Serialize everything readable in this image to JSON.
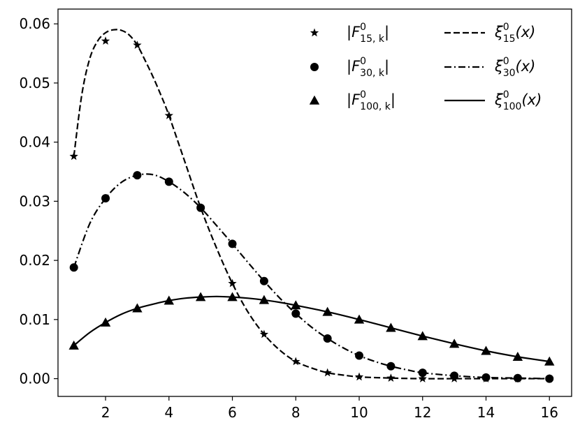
{
  "chart_data": {
    "type": "line",
    "title": "",
    "xlabel": "",
    "ylabel": "",
    "xlim": [
      0.5,
      16.7
    ],
    "ylim": [
      -0.003,
      0.0625
    ],
    "x_ticks": [
      2,
      4,
      6,
      8,
      10,
      12,
      14,
      16
    ],
    "x_tick_labels": [
      "2",
      "4",
      "6",
      "8",
      "10",
      "12",
      "14",
      "16"
    ],
    "y_ticks": [
      0.0,
      0.01,
      0.02,
      0.03,
      0.04,
      0.05,
      0.06
    ],
    "y_tick_labels": [
      "0.00",
      "0.01",
      "0.02",
      "0.03",
      "0.04",
      "0.05",
      "0.06"
    ],
    "grid": false,
    "legend_position": "top-right",
    "series": [
      {
        "name": "|F^0_{15,k}|",
        "legend": {
          "base": "|F",
          "sup": "0",
          "sub": "15, k",
          "tail": "|"
        },
        "kind": "markers",
        "marker": "star",
        "x": [
          1,
          2,
          3,
          4,
          5,
          6,
          7,
          8,
          9,
          10,
          11,
          12,
          13,
          14,
          15,
          16
        ],
        "y": [
          0.0376,
          0.0571,
          0.0564,
          0.0445,
          0.0289,
          0.0161,
          0.0075,
          0.0029,
          0.001,
          0.0003,
          0.0001,
          0.0,
          0.0,
          0.0,
          0.0,
          0.0
        ]
      },
      {
        "name": "|F^0_{30,k}|",
        "legend": {
          "base": "|F",
          "sup": "0",
          "sub": "30, k",
          "tail": "|"
        },
        "kind": "markers",
        "marker": "circle",
        "x": [
          1,
          2,
          3,
          4,
          5,
          6,
          7,
          8,
          9,
          10,
          11,
          12,
          13,
          14,
          15,
          16
        ],
        "y": [
          0.0188,
          0.0305,
          0.0344,
          0.0333,
          0.0289,
          0.0228,
          0.0165,
          0.011,
          0.0068,
          0.0039,
          0.0021,
          0.001,
          0.0005,
          0.0002,
          0.0001,
          0.0
        ]
      },
      {
        "name": "|F^0_{100,k}|",
        "legend": {
          "base": "|F",
          "sup": "0",
          "sub": "100, k",
          "tail": "|"
        },
        "kind": "markers",
        "marker": "triangle",
        "x": [
          1,
          2,
          3,
          4,
          5,
          6,
          7,
          8,
          9,
          10,
          11,
          12,
          13,
          14,
          15,
          16
        ],
        "y": [
          0.0056,
          0.0095,
          0.0119,
          0.0132,
          0.0138,
          0.0138,
          0.0133,
          0.0124,
          0.0113,
          0.01,
          0.0086,
          0.0072,
          0.0059,
          0.0047,
          0.0037,
          0.0029
        ]
      },
      {
        "name": "ξ^0_{15}(x)",
        "legend": {
          "base": "ξ",
          "sup": "0",
          "sub": "15",
          "tail": "(x)"
        },
        "kind": "line",
        "dash": "dashed",
        "x": [
          1.0,
          1.25,
          1.5,
          1.75,
          2.0,
          2.25,
          2.5,
          2.75,
          3.0,
          3.25,
          3.5,
          3.75,
          4.0,
          4.5,
          5.0,
          5.5,
          6.0,
          6.5,
          7.0,
          7.5,
          8.0,
          8.5,
          9.0,
          9.5,
          10.0,
          11.0,
          12.0,
          13.0,
          14.0,
          15.0,
          16.0
        ],
        "y": [
          0.0376,
          0.048,
          0.0541,
          0.0571,
          0.0585,
          0.059,
          0.0589,
          0.0581,
          0.0564,
          0.0538,
          0.051,
          0.0479,
          0.0445,
          0.0367,
          0.0289,
          0.0221,
          0.0161,
          0.0112,
          0.0075,
          0.0048,
          0.0029,
          0.0018,
          0.001,
          0.0006,
          0.0003,
          0.0001,
          0.0,
          0.0,
          0.0,
          0.0,
          0.0
        ]
      },
      {
        "name": "ξ^0_{30}(x)",
        "legend": {
          "base": "ξ",
          "sup": "0",
          "sub": "30",
          "tail": "(x)"
        },
        "kind": "line",
        "dash": "dashdot",
        "x": [
          1.0,
          1.5,
          2.0,
          2.5,
          3.0,
          3.5,
          4.0,
          4.5,
          5.0,
          5.5,
          6.0,
          6.5,
          7.0,
          7.5,
          8.0,
          8.5,
          9.0,
          9.5,
          10.0,
          10.5,
          11.0,
          11.5,
          12.0,
          13.0,
          14.0,
          15.0,
          16.0
        ],
        "y": [
          0.0188,
          0.0262,
          0.0305,
          0.0332,
          0.0344,
          0.0345,
          0.0333,
          0.0314,
          0.0289,
          0.0259,
          0.0228,
          0.0196,
          0.0165,
          0.0136,
          0.011,
          0.0087,
          0.0068,
          0.0052,
          0.0039,
          0.0029,
          0.0021,
          0.0015,
          0.001,
          0.0005,
          0.0002,
          0.0001,
          0.0
        ]
      },
      {
        "name": "ξ^0_{100}(x)",
        "legend": {
          "base": "ξ",
          "sup": "0",
          "sub": "100",
          "tail": "(x)"
        },
        "kind": "line",
        "dash": "solid",
        "x": [
          1.0,
          1.5,
          2.0,
          2.5,
          3.0,
          3.5,
          4.0,
          4.5,
          5.0,
          5.5,
          6.0,
          6.5,
          7.0,
          7.5,
          8.0,
          9.0,
          10.0,
          11.0,
          12.0,
          13.0,
          14.0,
          15.0,
          16.0
        ],
        "y": [
          0.0056,
          0.0078,
          0.0095,
          0.0109,
          0.0119,
          0.0126,
          0.0132,
          0.0136,
          0.0138,
          0.0139,
          0.0138,
          0.0136,
          0.0133,
          0.0129,
          0.0124,
          0.0113,
          0.01,
          0.0086,
          0.0072,
          0.0059,
          0.0047,
          0.0037,
          0.0029
        ]
      }
    ]
  }
}
